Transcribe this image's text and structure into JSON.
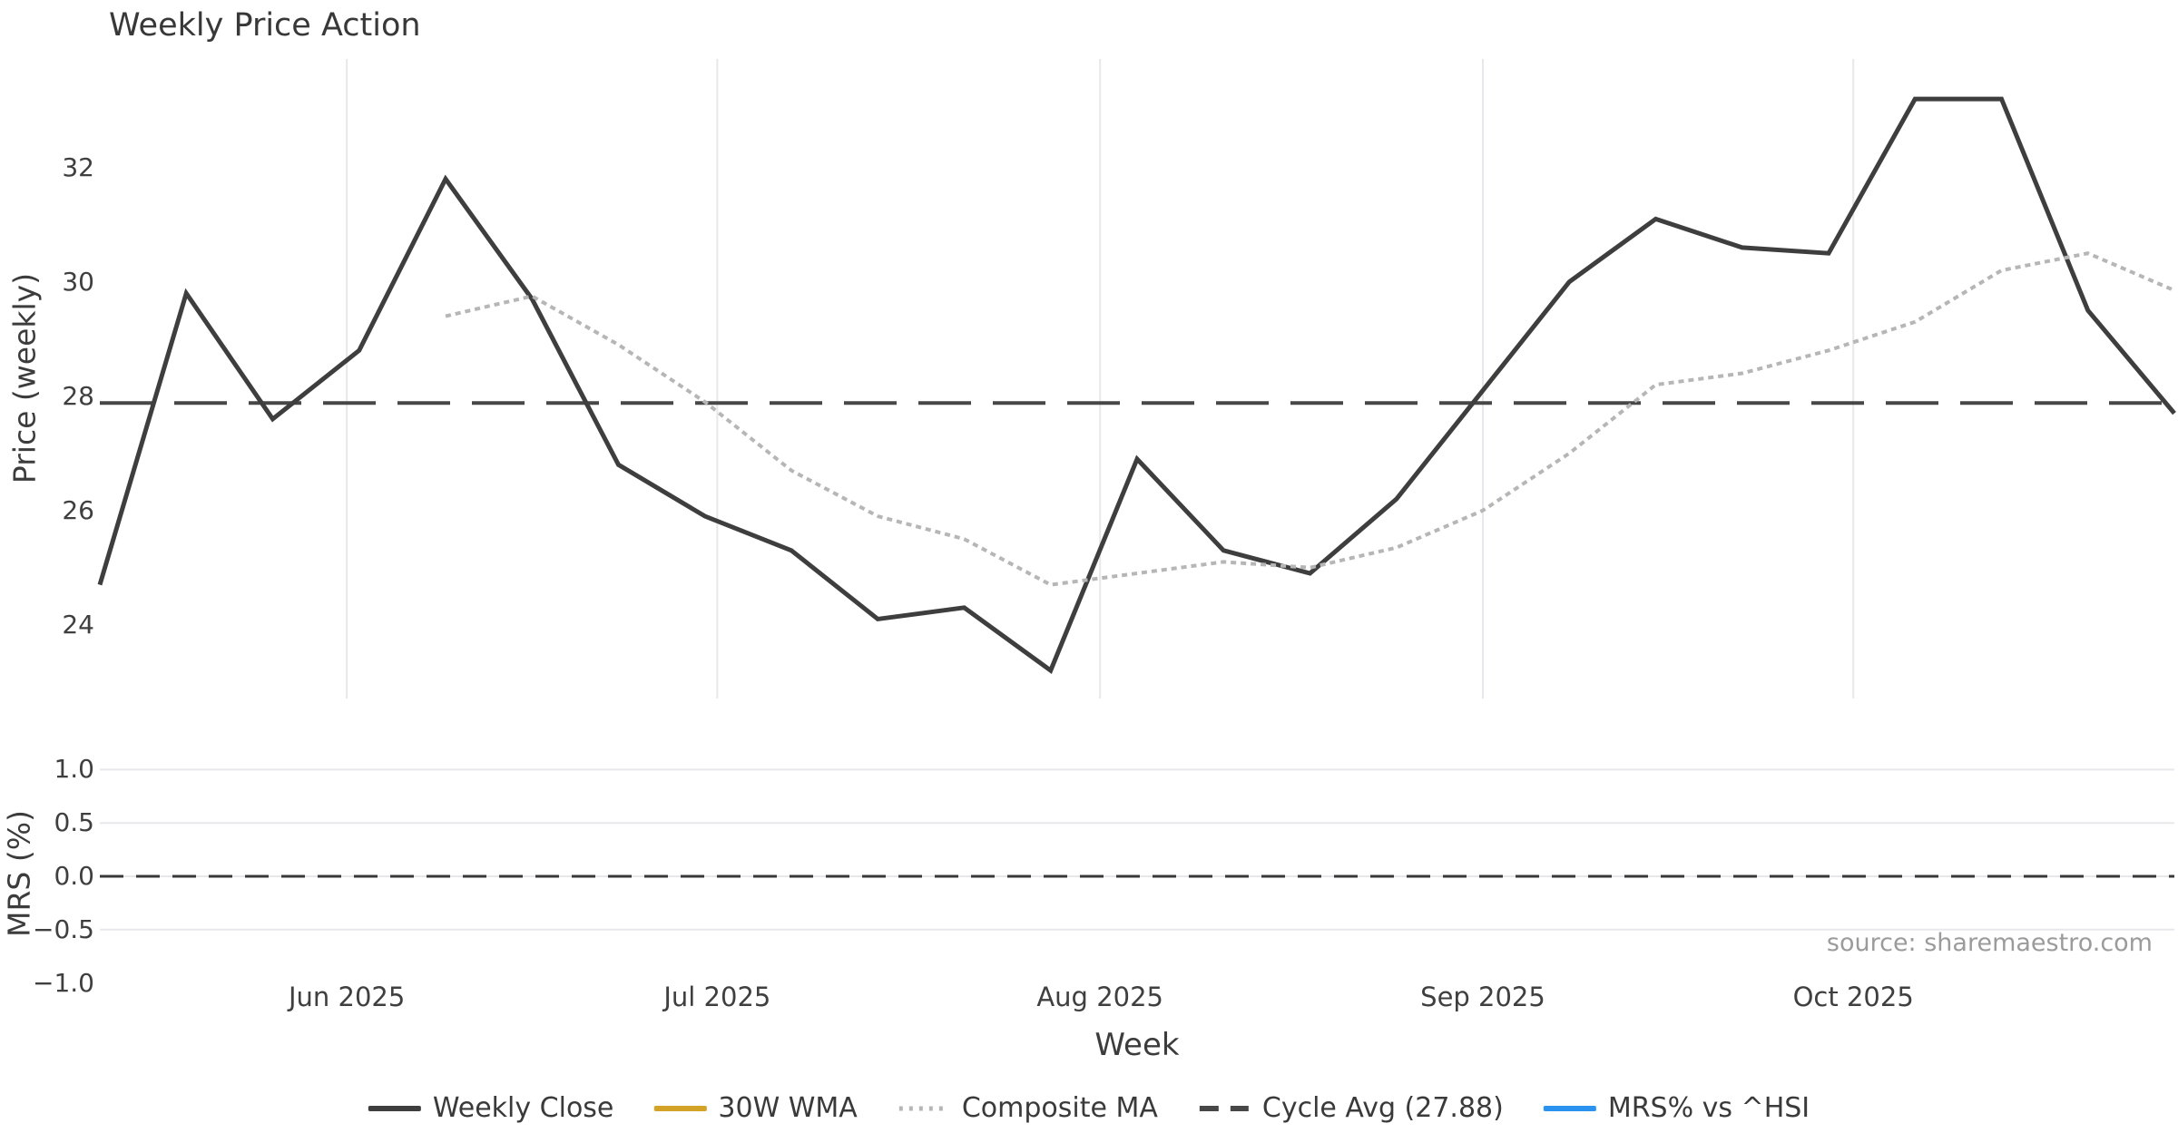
{
  "title": "Weekly Price Action",
  "source_note": "source: sharemaestro.com",
  "axes": {
    "price_axis_label": "Price (weekly)",
    "mrs_axis_label": "MRS (%)",
    "x_axis_label": "Week"
  },
  "colors": {
    "weekly_close": "#3e3e3e",
    "wma_30w": "#d3a327",
    "composite_ma": "#b6b6b6",
    "cycle_avg": "#474747",
    "mrs_line": "#2a93f0",
    "gridline": "#e8e8ec",
    "zero_dash": "#383838",
    "text_dark": "#3a3a3a",
    "text_muted": "#9b9b9b"
  },
  "legend": [
    {
      "label": "Weekly Close",
      "color": "#3e3e3e",
      "style": "solid"
    },
    {
      "label": "30W WMA",
      "color": "#d3a327",
      "style": "solid"
    },
    {
      "label": "Composite MA",
      "color": "#b6b6b6",
      "style": "dotted"
    },
    {
      "label": "Cycle Avg (27.88)",
      "color": "#474747",
      "style": "dashed"
    },
    {
      "label": "MRS% vs ^HSI",
      "color": "#2a93f0",
      "style": "solid"
    }
  ],
  "chart_data": [
    {
      "type": "line",
      "panel": "price",
      "title": "Weekly Price Action",
      "ylabel": "Price (weekly)",
      "xlabel": "Week",
      "grid": "vertical-months",
      "ylim": [
        22.71,
        33.9
      ],
      "y_ticks": [
        24,
        26,
        28,
        30,
        32
      ],
      "x_ticks": [
        {
          "label": "Jun 2025",
          "date": "2025-06-01"
        },
        {
          "label": "Jul 2025",
          "date": "2025-07-01"
        },
        {
          "label": "Aug 2025",
          "date": "2025-08-01"
        },
        {
          "label": "Sep 2025",
          "date": "2025-09-01"
        },
        {
          "label": "Oct 2025",
          "date": "2025-10-01"
        }
      ],
      "x_dates": [
        "2025-05-12",
        "2025-05-19",
        "2025-05-26",
        "2025-06-02",
        "2025-06-09",
        "2025-06-16",
        "2025-06-23",
        "2025-06-30",
        "2025-07-07",
        "2025-07-14",
        "2025-07-21",
        "2025-07-28",
        "2025-08-04",
        "2025-08-11",
        "2025-08-18",
        "2025-08-25",
        "2025-09-01",
        "2025-09-08",
        "2025-09-15",
        "2025-09-22",
        "2025-09-29",
        "2025-10-06",
        "2025-10-13",
        "2025-10-20",
        "2025-10-27"
      ],
      "series": [
        {
          "name": "Weekly Close",
          "style": "solid",
          "color": "#3e3e3e",
          "width": 5,
          "start_index": 0,
          "values": [
            24.7,
            29.8,
            27.6,
            28.8,
            31.8,
            29.7,
            26.8,
            25.9,
            25.3,
            24.1,
            24.3,
            23.2,
            26.9,
            25.3,
            24.9,
            26.2,
            28.1,
            30.0,
            31.1,
            30.6,
            30.5,
            33.2,
            33.2,
            29.5,
            27.7
          ]
        },
        {
          "name": "30W WMA",
          "style": "solid",
          "color": "#d3a327",
          "width": 5,
          "start_index": 0,
          "values": []
        },
        {
          "name": "Composite MA",
          "style": "dotted",
          "color": "#b6b6b6",
          "width": 4,
          "start_index": 4,
          "values": [
            29.4,
            29.75,
            28.9,
            27.9,
            26.7,
            25.9,
            25.5,
            24.7,
            24.9,
            25.1,
            25.0,
            25.35,
            26.0,
            27.0,
            28.2,
            28.4,
            28.8,
            29.3,
            30.2,
            30.5,
            29.85
          ]
        },
        {
          "name": "Cycle Avg",
          "style": "dashed",
          "color": "#474747",
          "width": 4,
          "constant": 27.88
        }
      ]
    },
    {
      "type": "line",
      "panel": "mrs",
      "ylabel": "MRS (%)",
      "ylim": [
        -1.25,
        1.25
      ],
      "y_ticks": [
        {
          "label": "1.0",
          "value": 1.0,
          "gridline": true
        },
        {
          "label": "0.5",
          "value": 0.5,
          "gridline": true
        },
        {
          "label": "0.0",
          "value": 0.0,
          "gridline": true
        },
        {
          "label": "−0.5",
          "value": -0.5,
          "gridline": true
        },
        {
          "label": "−1.0",
          "value": -1.0,
          "gridline": false
        }
      ],
      "zero_dash_value": 0.0,
      "series": [
        {
          "name": "MRS% vs ^HSI",
          "style": "solid",
          "color": "#2a93f0",
          "width": 4,
          "start_index": 0,
          "values": []
        }
      ]
    }
  ]
}
